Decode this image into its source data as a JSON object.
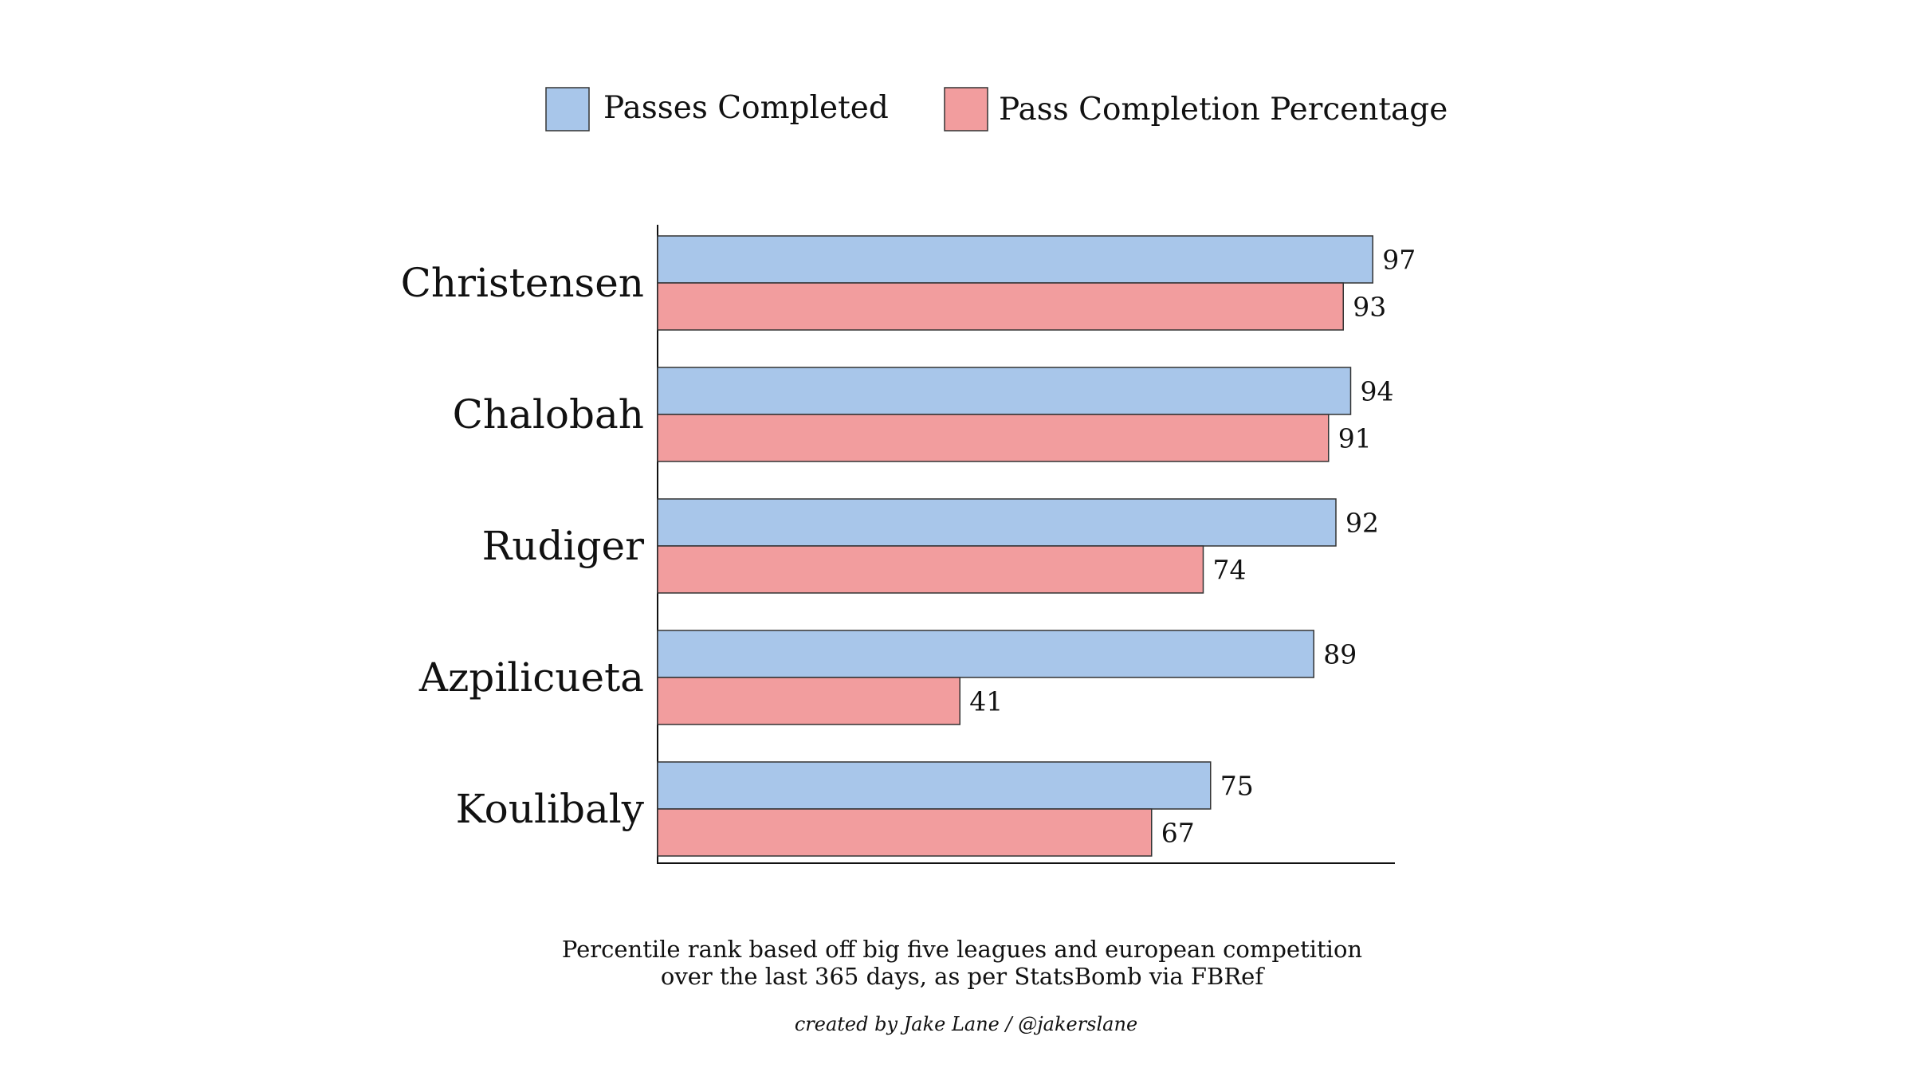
{
  "chart_data": {
    "type": "bar",
    "orientation": "horizontal",
    "categories": [
      "Christensen",
      "Chalobah",
      "Rudiger",
      "Azpilicueta",
      "Koulibaly"
    ],
    "series": [
      {
        "name": "Passes Completed",
        "color": "#a8c6ea",
        "values": [
          97,
          94,
          92,
          89,
          75
        ]
      },
      {
        "name": "Pass Completion Percentage",
        "color": "#f29d9e",
        "values": [
          93,
          91,
          74,
          41,
          67
        ]
      }
    ],
    "xlim": [
      0,
      100
    ],
    "legend_position": "top",
    "grid": false,
    "caption": [
      "Percentile rank based off big five leagues and european competition",
      "over the last 365 days, as per StatsBomb via FBRef"
    ],
    "credit": "created by Jake Lane / @jakerslane"
  }
}
